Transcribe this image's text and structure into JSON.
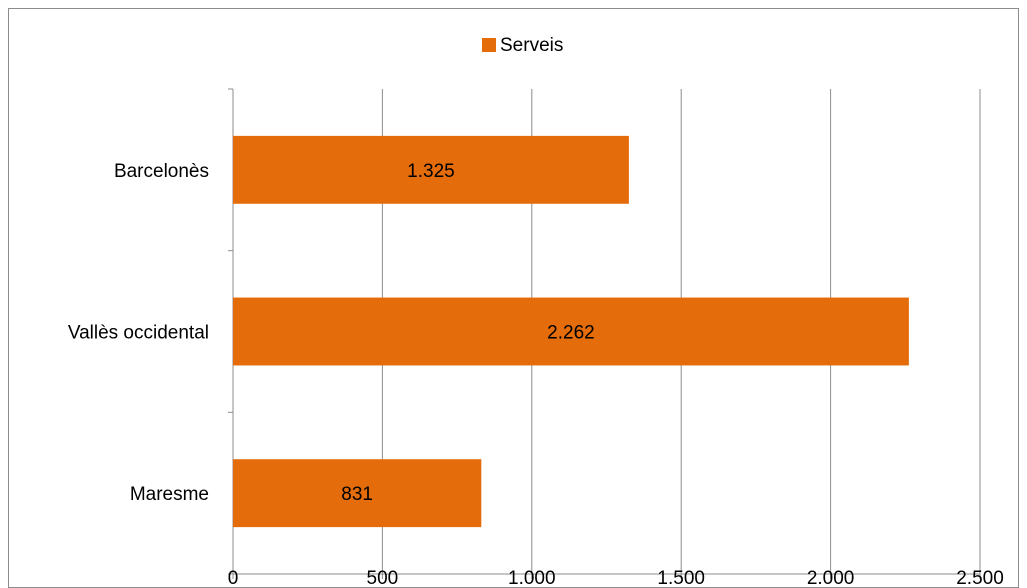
{
  "chart_data": {
    "type": "bar",
    "orientation": "horizontal",
    "categories": [
      "Barcelonès",
      "Vallès occidental",
      "Maresme"
    ],
    "series": [
      {
        "name": "Serveis",
        "values": [
          1325,
          2262,
          831
        ],
        "value_labels": [
          "1.325",
          "2.262",
          "831"
        ],
        "color": "#E46C0A"
      }
    ],
    "xlim": [
      0,
      2500
    ],
    "x_ticks": [
      0,
      500,
      1000,
      1500,
      2000,
      2500
    ],
    "x_tick_labels": [
      "0",
      "500",
      "1.000",
      "1.500",
      "2.000",
      "2.500"
    ],
    "grid": "vertical",
    "legend_position": "top",
    "title": "",
    "xlabel": "",
    "ylabel": ""
  }
}
